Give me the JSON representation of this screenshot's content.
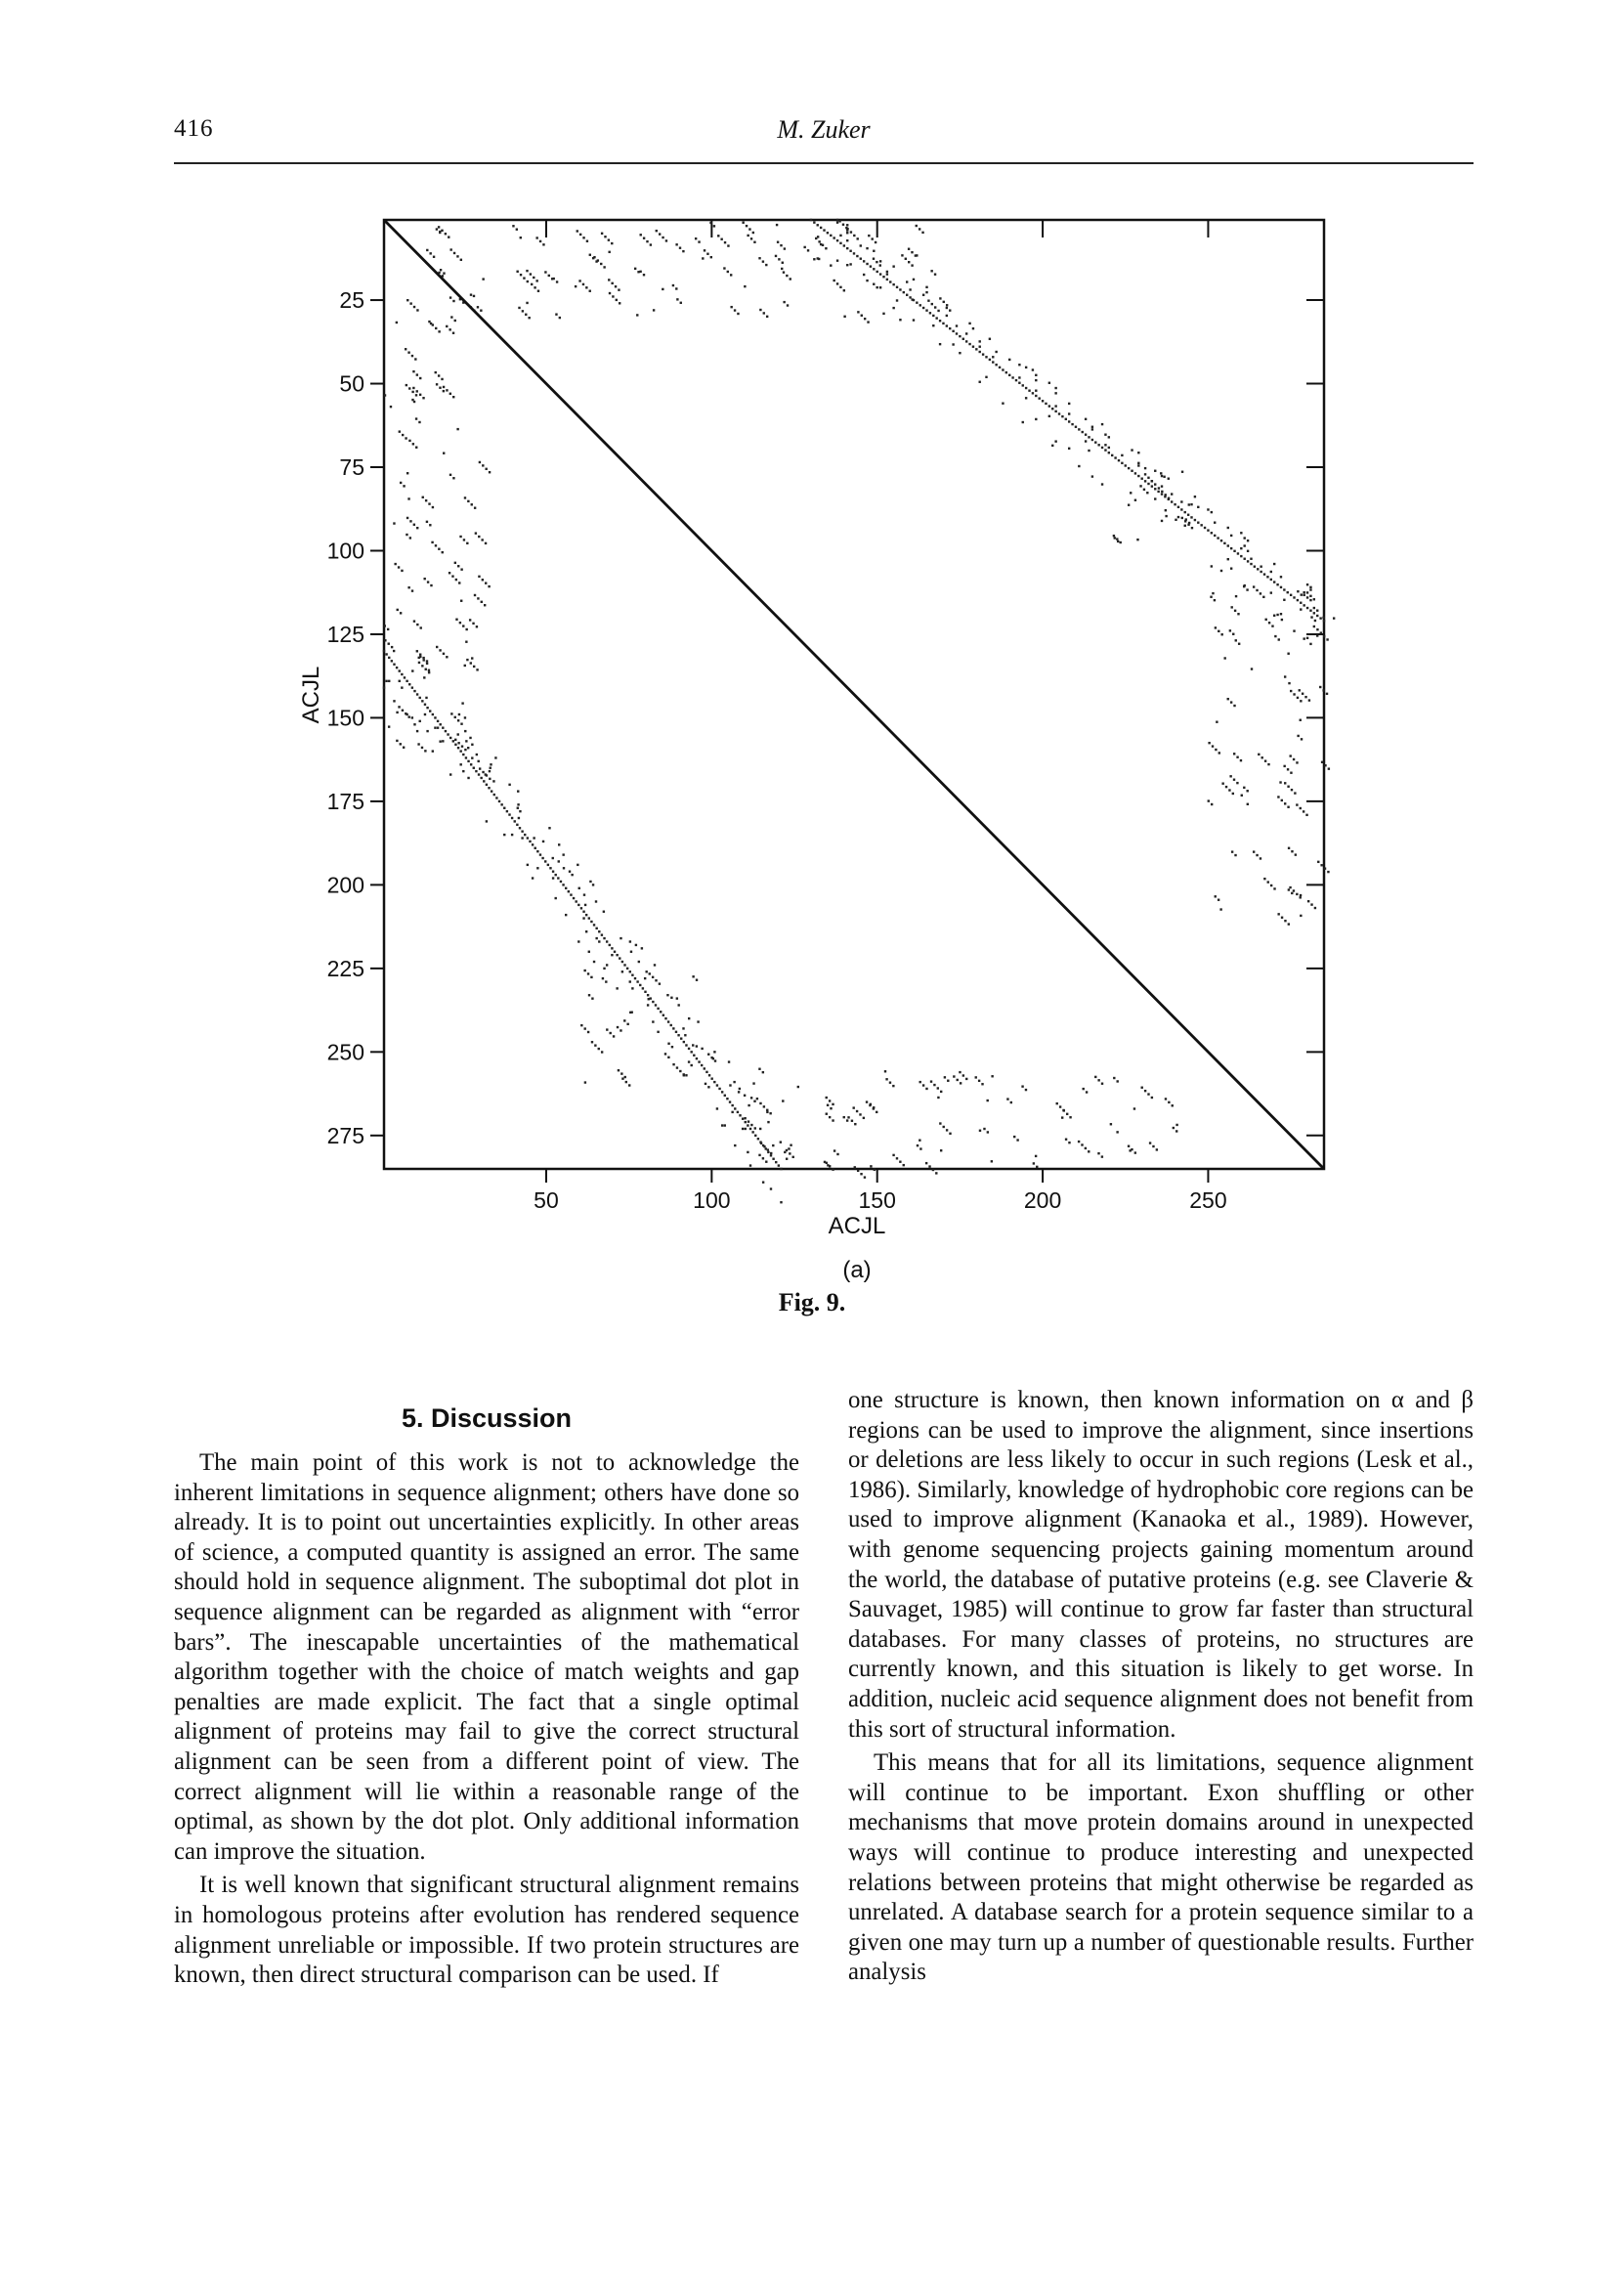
{
  "header": {
    "page_number": "416",
    "running_head": "M. Zuker"
  },
  "figure": {
    "caption": "Fig. 9.",
    "panel_label": "(a)",
    "chart_data": {
      "type": "scatter",
      "title": "",
      "xlabel": "ACJL",
      "ylabel": "ACJL",
      "xlim": [
        1,
        285
      ],
      "ylim": [
        1,
        285
      ],
      "y_axis_inverted": true,
      "x_ticks": [
        50,
        100,
        150,
        200,
        250
      ],
      "y_ticks": [
        25,
        50,
        75,
        100,
        125,
        150,
        175,
        200,
        225,
        250,
        275
      ],
      "x_tick_labels": [
        "50",
        "100",
        "150",
        "200",
        "250"
      ],
      "y_tick_labels": [
        "25",
        "50",
        "75",
        "100",
        "125",
        "150",
        "175",
        "200",
        "225",
        "250",
        "275"
      ],
      "grid": false,
      "main_diagonal": {
        "from": [
          1,
          1
        ],
        "to": [
          285,
          285
        ]
      },
      "suboptimal_diagonals": [
        {
          "from": [
            130,
            1
          ],
          "to": [
            285,
            121
          ]
        },
        {
          "from": [
            1,
            130
          ],
          "to": [
            121,
            285
          ]
        }
      ],
      "dot_clusters": [
        {
          "x_range": [
            10,
            170
          ],
          "y_range": [
            1,
            30
          ]
        },
        {
          "x_range": [
            220,
            250
          ],
          "y_range": [
            70,
            100
          ]
        },
        {
          "x_range": [
            250,
            285
          ],
          "y_range": [
            110,
            210
          ]
        },
        {
          "x_range": [
            1,
            30
          ],
          "y_range": [
            20,
            175
          ]
        },
        {
          "x_range": [
            60,
            100
          ],
          "y_range": [
            225,
            260
          ]
        },
        {
          "x_range": [
            110,
            245
          ],
          "y_range": [
            255,
            285
          ]
        }
      ]
    }
  },
  "discussion": {
    "heading": "5. Discussion",
    "left_paragraphs": [
      "The main point of this work is not to acknowledge the inherent limitations in sequence alignment; others have done so already. It is to point out uncertainties explicitly. In other areas of science, a computed quantity is assigned an error. The same should hold in sequence alignment. The suboptimal dot plot in sequence alignment can be regarded as alignment with “error bars”. The inescapable uncertainties of the mathematical algorithm together with the choice of match weights and gap penalties are made explicit. The fact that a single optimal alignment of proteins may fail to give the correct structural alignment can be seen from a different point of view. The correct alignment will lie within a reasonable range of the optimal, as shown by the dot plot. Only additional information can improve the situation.",
      "It is well known that significant structural alignment remains in homologous proteins after evolution has rendered sequence alignment unreliable or impossible. If two protein structures are known, then direct structural comparison can be used. If"
    ],
    "right_paragraphs": [
      "one structure is known, then known information on α and β regions can be used to improve the alignment, since insertions or deletions are less likely to occur in such regions (Lesk et al., 1986). Similarly, knowledge of hydrophobic core regions can be used to improve alignment (Kanaoka et al., 1989). However, with genome sequencing projects gaining momentum around the world, the database of putative proteins (e.g. see Claverie & Sauvaget, 1985) will continue to grow far faster than structural databases. For many classes of proteins, no structures are currently known, and this situation is likely to get worse. In addition, nucleic acid sequence alignment does not benefit from this sort of structural information.",
      "This means that for all its limitations, sequence alignment will continue to be important. Exon shuffling or other mechanisms that move protein domains around in unexpected ways will continue to produce interesting and unexpected relations between proteins that might otherwise be regarded as unrelated. A database search for a protein sequence similar to a given one may turn up a number of questionable results. Further analysis"
    ]
  }
}
